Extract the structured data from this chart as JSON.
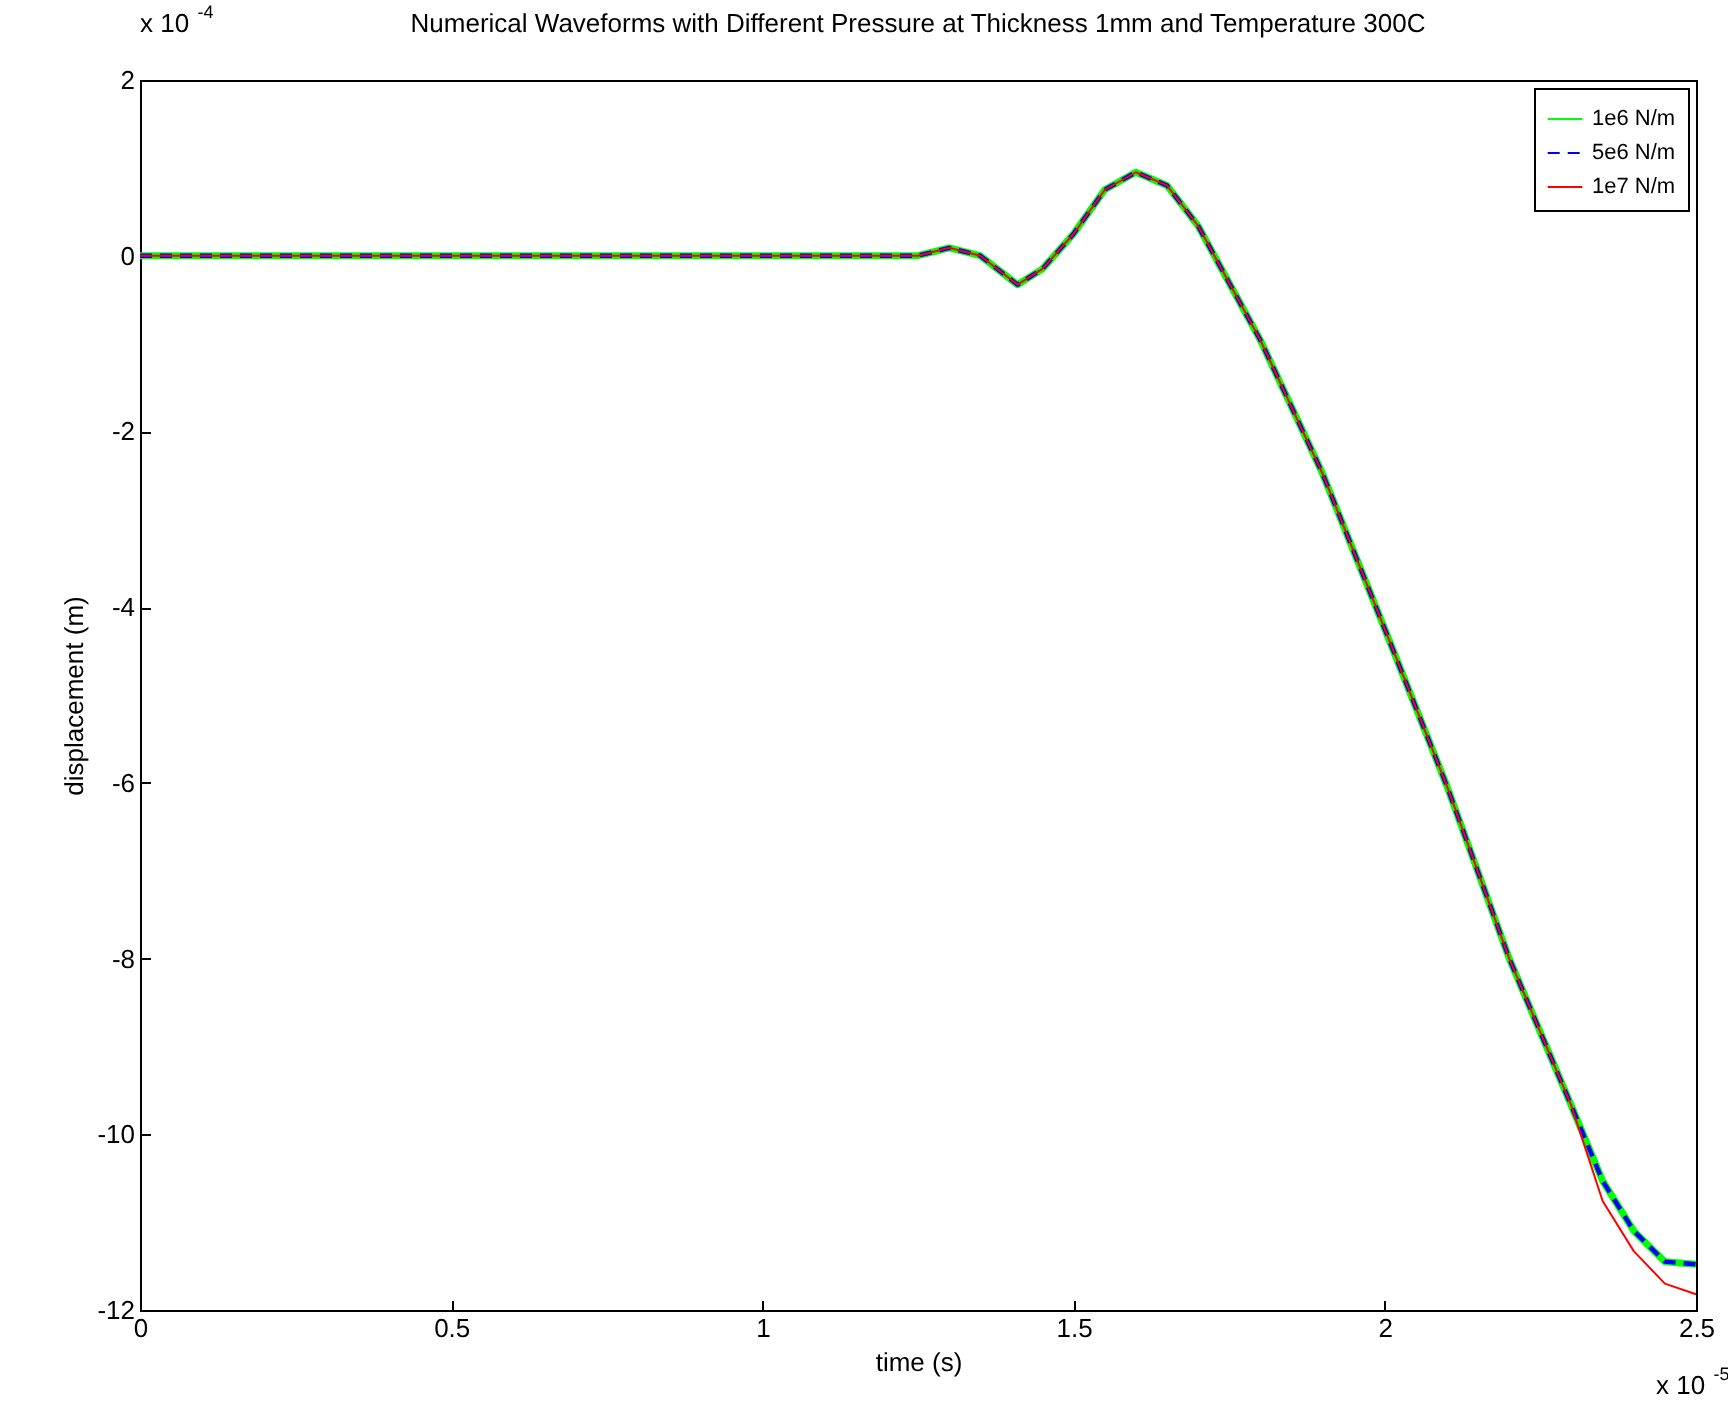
{
  "chart_data": {
    "type": "line",
    "title": "Numerical Waveforms with Different Pressure at Thickness 1mm and Temperature 300C",
    "xlabel": "time (s)",
    "ylabel": "displacement (m)",
    "annotations": [
      "x 10$^{-4}$",
      "x 10$^{-5}$"
    ],
    "x": [
      0,
      0.5,
      1.0,
      1.25,
      1.3,
      1.35,
      1.41,
      1.45,
      1.5,
      1.55,
      1.6,
      1.65,
      1.7,
      1.8,
      1.9,
      2.0,
      2.1,
      2.2,
      2.3,
      2.35,
      2.4,
      2.45,
      2.5
    ],
    "series": [
      {
        "name": "1e6 N/m",
        "color": "#00ff00",
        "line_style": "solid",
        "values": [
          0,
          0,
          0,
          0,
          0.09,
          0,
          -0.33,
          -0.15,
          0.25,
          0.75,
          0.95,
          0.8,
          0.34,
          -0.96,
          -2.48,
          -4.25,
          -6.04,
          -8.0,
          -9.68,
          -10.53,
          -11.1,
          -11.45,
          -11.48
        ]
      },
      {
        "name": "5e6 N/m",
        "color": "#0000ff",
        "line_style": "dashed",
        "values": [
          0,
          0,
          0,
          0,
          0.09,
          0,
          -0.33,
          -0.15,
          0.25,
          0.75,
          0.95,
          0.8,
          0.34,
          -0.96,
          -2.48,
          -4.25,
          -6.04,
          -8.0,
          -9.68,
          -10.53,
          -11.1,
          -11.45,
          -11.48
        ]
      },
      {
        "name": "1e7 N/m",
        "color": "#ff0000",
        "line_style": "solid",
        "values": [
          0,
          0,
          0,
          0,
          0.09,
          0,
          -0.33,
          -0.15,
          0.25,
          0.75,
          0.95,
          0.8,
          0.34,
          -0.96,
          -2.48,
          -4.25,
          -6.04,
          -8.0,
          -9.68,
          -10.76,
          -11.33,
          -11.7,
          -11.82
        ]
      }
    ],
    "xlim": [
      0,
      2.5
    ],
    "xticks": [
      0,
      0.5,
      1,
      1.5,
      2,
      2.5
    ],
    "ylim": [
      -12,
      2
    ],
    "yticks": [
      -12,
      -10,
      -8,
      -6,
      -4,
      -2,
      0,
      2
    ],
    "grid": false,
    "legend": "top right"
  }
}
